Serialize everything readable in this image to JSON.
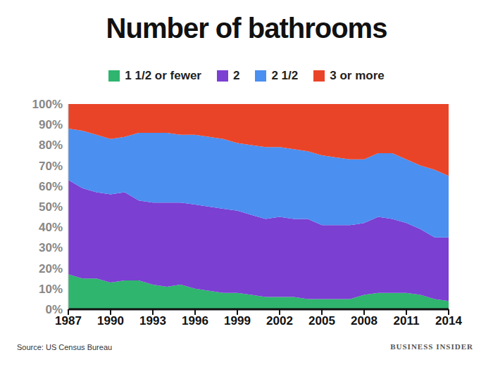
{
  "chart_data": {
    "type": "area",
    "title": "Number of bathrooms",
    "source": "Source: US Census Bureau",
    "brand": "BUSINESS INSIDER",
    "stacked": true,
    "legend": "top",
    "grid": false,
    "x": [
      1987,
      1988,
      1989,
      1990,
      1991,
      1992,
      1993,
      1994,
      1995,
      1996,
      1997,
      1998,
      1999,
      2000,
      2001,
      2002,
      2003,
      2004,
      2005,
      2006,
      2007,
      2008,
      2009,
      2010,
      2011,
      2012,
      2013,
      2014
    ],
    "xlim": [
      1987,
      2014
    ],
    "xticks": [
      1987,
      1990,
      1993,
      1996,
      1999,
      2002,
      2005,
      2008,
      2011,
      2014
    ],
    "ylim": [
      0,
      100
    ],
    "yticks": [
      {
        "value": 0,
        "label": "0%"
      },
      {
        "value": 10,
        "label": "10%"
      },
      {
        "value": 20,
        "label": "20%"
      },
      {
        "value": 30,
        "label": "30%"
      },
      {
        "value": 40,
        "label": "40%"
      },
      {
        "value": 50,
        "label": "50%"
      },
      {
        "value": 60,
        "label": "60%"
      },
      {
        "value": 70,
        "label": "70%"
      },
      {
        "value": 80,
        "label": "80%"
      },
      {
        "value": 90,
        "label": "90%"
      },
      {
        "value": 100,
        "label": "100%"
      }
    ],
    "series": [
      {
        "name": "1 1/2 or fewer",
        "color": "#2fb56e",
        "values": [
          17,
          15,
          15,
          13,
          14,
          14,
          12,
          11,
          12,
          10,
          9,
          8,
          8,
          7,
          6,
          6,
          6,
          5,
          5,
          5,
          5,
          7,
          8,
          8,
          8,
          7,
          5,
          4
        ]
      },
      {
        "name": "2",
        "color": "#7b3fd2",
        "values": [
          46,
          44,
          42,
          43,
          43,
          39,
          40,
          41,
          40,
          41,
          41,
          41,
          40,
          39,
          38,
          39,
          38,
          39,
          36,
          36,
          36,
          35,
          37,
          36,
          34,
          32,
          30,
          31
        ]
      },
      {
        "name": "2 1/2",
        "color": "#4b8ff0",
        "values": [
          25,
          28,
          28,
          27,
          27,
          33,
          34,
          34,
          33,
          34,
          34,
          34,
          33,
          34,
          35,
          34,
          34,
          33,
          34,
          33,
          32,
          31,
          31,
          32,
          31,
          31,
          33,
          30
        ]
      },
      {
        "name": "3 or more",
        "color": "#ea4428",
        "values": [
          12,
          13,
          15,
          17,
          16,
          14,
          14,
          14,
          15,
          15,
          16,
          17,
          19,
          20,
          21,
          21,
          22,
          23,
          25,
          26,
          27,
          27,
          24,
          24,
          27,
          30,
          32,
          35
        ]
      }
    ]
  }
}
